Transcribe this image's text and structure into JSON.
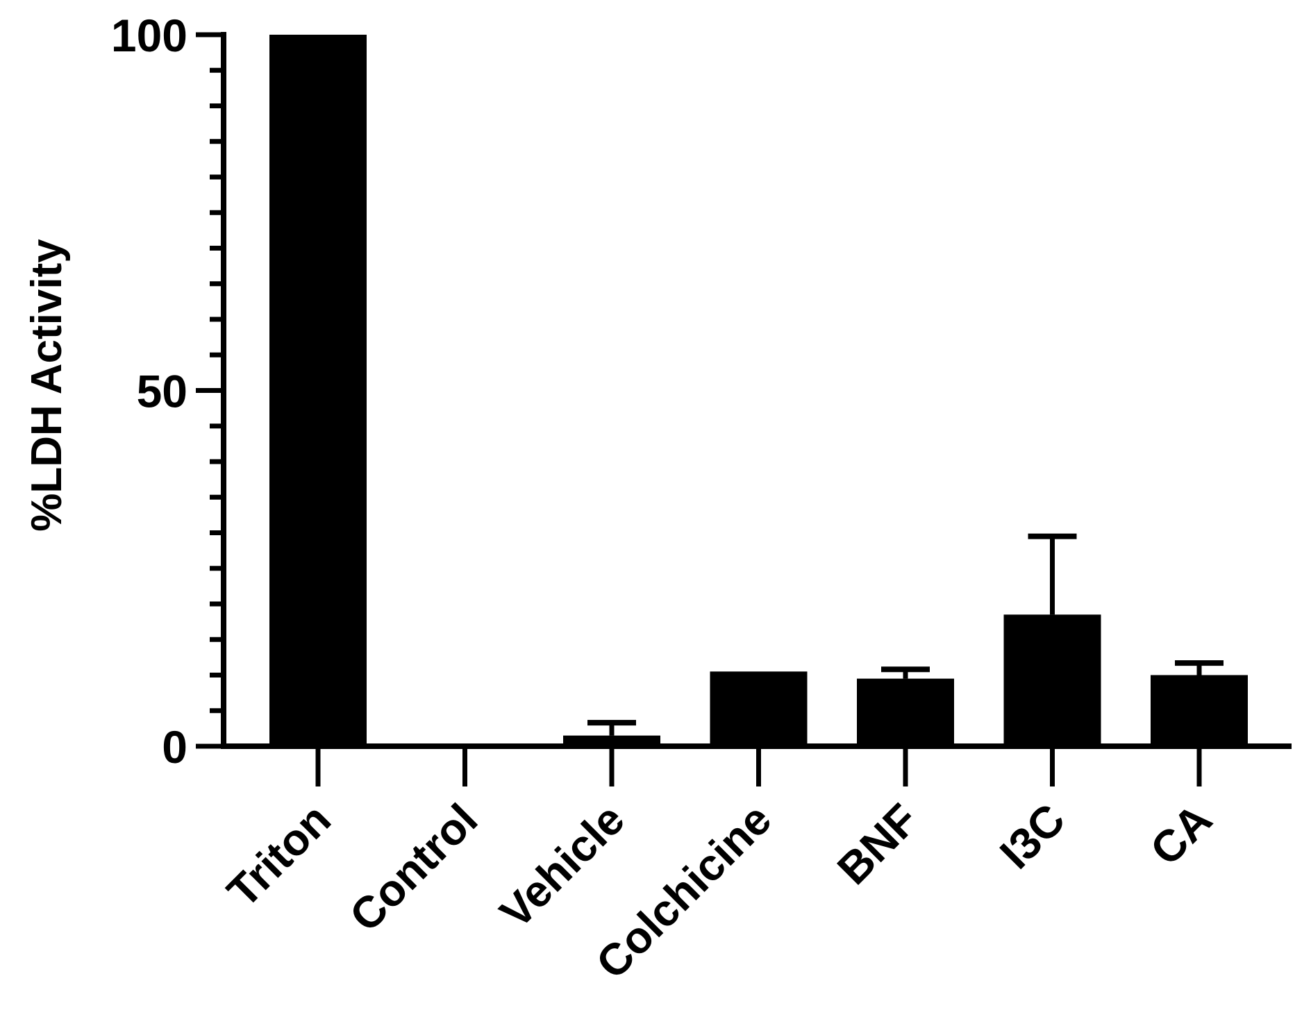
{
  "chart_data": {
    "type": "bar",
    "title": "",
    "xlabel": "",
    "ylabel": "%LDH Activity",
    "ylim": [
      0,
      100
    ],
    "y_major_ticks": [
      0,
      50,
      100
    ],
    "y_minor_step": 5,
    "grid": false,
    "legend": "none",
    "bar_color": "#000000",
    "categories": [
      "Triton",
      "Control",
      "Vehicle",
      "Colchicine",
      "BNF",
      "I3C",
      "CA"
    ],
    "series": [
      {
        "values": [
          100,
          0,
          1.5,
          10.5,
          9.5,
          18.5,
          10
        ],
        "error_plus": [
          0,
          0,
          1.8,
          0,
          1.3,
          11,
          1.7
        ]
      }
    ]
  }
}
